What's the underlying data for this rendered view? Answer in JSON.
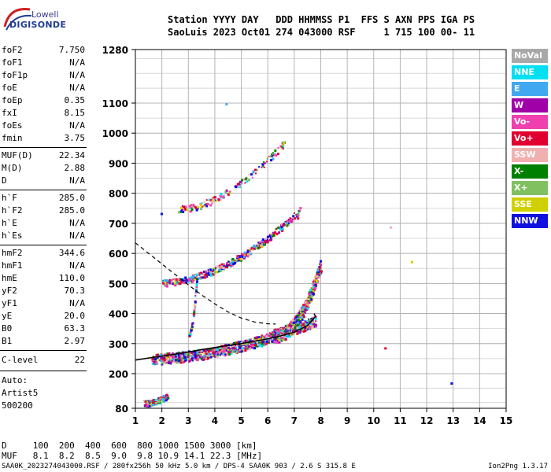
{
  "header": {
    "logo_top": "Lowell",
    "logo_bottom": "DIGISONDE",
    "line1": "Station YYYY DAY   DDD HHMMSS P1  FFS S AXN PPS IGA PS",
    "line2": "SaoLuis 2023 Oct01 274 043000 RSF     1 715 100 00- 11"
  },
  "params_group1": [
    {
      "name": "foF2",
      "value": "7.750"
    },
    {
      "name": "foF1",
      "value": "N/A"
    },
    {
      "name": "foF1p",
      "value": "N/A"
    },
    {
      "name": "foE",
      "value": "N/A"
    },
    {
      "name": "foEp",
      "value": "0.35"
    },
    {
      "name": "fxI",
      "value": "8.15"
    },
    {
      "name": "foEs",
      "value": "N/A"
    },
    {
      "name": "fmin",
      "value": "3.75"
    }
  ],
  "params_group2": [
    {
      "name": "MUF(D)",
      "value": "22.34"
    },
    {
      "name": "M(D)",
      "value": "2.88"
    },
    {
      "name": "D",
      "value": "N/A"
    }
  ],
  "params_group3": [
    {
      "name": "h`F",
      "value": "285.0"
    },
    {
      "name": "h`F2",
      "value": "285.0"
    },
    {
      "name": "h`E",
      "value": "N/A"
    },
    {
      "name": "h`Es",
      "value": "N/A"
    }
  ],
  "params_group4": [
    {
      "name": "hmF2",
      "value": "344.6"
    },
    {
      "name": "hmF1",
      "value": "N/A"
    },
    {
      "name": "hmE",
      "value": "110.0"
    },
    {
      "name": "yF2",
      "value": "70.3"
    },
    {
      "name": "yF1",
      "value": "N/A"
    },
    {
      "name": "yE",
      "value": "20.0"
    },
    {
      "name": "B0",
      "value": "63.3"
    },
    {
      "name": "B1",
      "value": "2.97"
    }
  ],
  "clevel": {
    "name": "C-level",
    "value": "22"
  },
  "autoscaling": {
    "line1": "Auto:",
    "line2": "Artist5",
    "line3": "500200"
  },
  "legend": [
    {
      "label": "NoVal",
      "color": "#a8a8a8"
    },
    {
      "label": "NNE",
      "color": "#00e0f0"
    },
    {
      "label": "E",
      "color": "#40a8f0"
    },
    {
      "label": "W",
      "color": "#a000a8"
    },
    {
      "label": "Vo-",
      "color": "#f040b0"
    },
    {
      "label": "Vo+",
      "color": "#e00030"
    },
    {
      "label": "SSW",
      "color": "#f0b0b0"
    },
    {
      "label": "X-",
      "color": "#008000"
    },
    {
      "label": "X+",
      "color": "#80c060"
    },
    {
      "label": "SSE",
      "color": "#d0d000"
    },
    {
      "label": "NNW",
      "color": "#1010e0"
    }
  ],
  "muf_table": {
    "row1": "D     100  200  400  600  800 1000 1500 3000 [km]",
    "row2": "MUF   8.1  8.2  8.5  9.0  9.8 10.9 14.1 22.3 [MHz]"
  },
  "footer": {
    "left": "SAA0K_2023274043000.RSF / 280fx256h 50 kHz 5.0 km / DPS-4 SAA0K 903 / 2.6 S 315.8 E",
    "right": "Ion2Png 1.3.17"
  },
  "chart_data": {
    "type": "scatter",
    "x_ticks": [
      1,
      2,
      3,
      4,
      5,
      6,
      7,
      8,
      9,
      10,
      11,
      12,
      13,
      14,
      15
    ],
    "y_ticks": [
      80,
      200,
      300,
      400,
      500,
      600,
      700,
      800,
      900,
      1000,
      1100,
      1280
    ],
    "xlim": [
      1,
      15
    ],
    "ylim": [
      80,
      1280
    ],
    "grid": true,
    "legend_position": "right",
    "profile_curve": {
      "x": [
        1.0,
        1.5,
        2.0,
        2.5,
        3.0,
        3.5,
        4.0,
        4.5,
        5.0,
        5.5,
        6.0,
        6.5,
        7.0,
        7.5,
        7.8,
        7.75
      ],
      "y": [
        245,
        252,
        258,
        265,
        272,
        280,
        287,
        294,
        300,
        308,
        316,
        326,
        338,
        360,
        390,
        400
      ]
    },
    "dashed_curve": {
      "x": [
        1.0,
        1.5,
        2.0,
        2.5,
        3.0,
        3.5,
        4.0,
        4.5,
        5.0,
        5.5,
        6.0,
        6.3
      ],
      "y": [
        635,
        600,
        565,
        530,
        495,
        462,
        432,
        405,
        385,
        372,
        366,
        365
      ]
    },
    "trace_bands": [
      {
        "name": "o_first",
        "x0": 1.6,
        "x1": 7.8,
        "y0": 245,
        "y1": 370,
        "spread": 35,
        "count": 1100
      },
      {
        "name": "o_cusp",
        "x0": 6.2,
        "x1": 8.0,
        "y0": 320,
        "y1": 560,
        "spread": 45,
        "count": 500
      },
      {
        "name": "second_hop",
        "x0": 2.0,
        "x1": 7.2,
        "y0": 500,
        "y1": 740,
        "spread": 22,
        "count": 420
      },
      {
        "name": "third_hop",
        "x0": 2.6,
        "x1": 6.6,
        "y0": 745,
        "y1": 965,
        "spread": 22,
        "count": 160
      },
      {
        "name": "low_echoes",
        "x0": 1.3,
        "x1": 2.2,
        "y0": 95,
        "y1": 120,
        "spread": 20,
        "count": 90
      },
      {
        "name": "vertical_spread",
        "x0": 3.0,
        "x1": 3.3,
        "y0": 330,
        "y1": 520,
        "spread": 10,
        "count": 60
      }
    ],
    "isolated_points": [
      {
        "x": 10.4,
        "y": 288,
        "color": "#e00030"
      },
      {
        "x": 12.9,
        "y": 170,
        "color": "#1010e0"
      },
      {
        "x": 10.6,
        "y": 690,
        "color": "#f0b0b0"
      },
      {
        "x": 11.4,
        "y": 575,
        "color": "#d0d000"
      },
      {
        "x": 7.1,
        "y": 720,
        "color": "#e00030"
      },
      {
        "x": 1.95,
        "y": 735,
        "color": "#1010e0"
      },
      {
        "x": 4.4,
        "y": 1100,
        "color": "#40a8f0"
      }
    ]
  }
}
